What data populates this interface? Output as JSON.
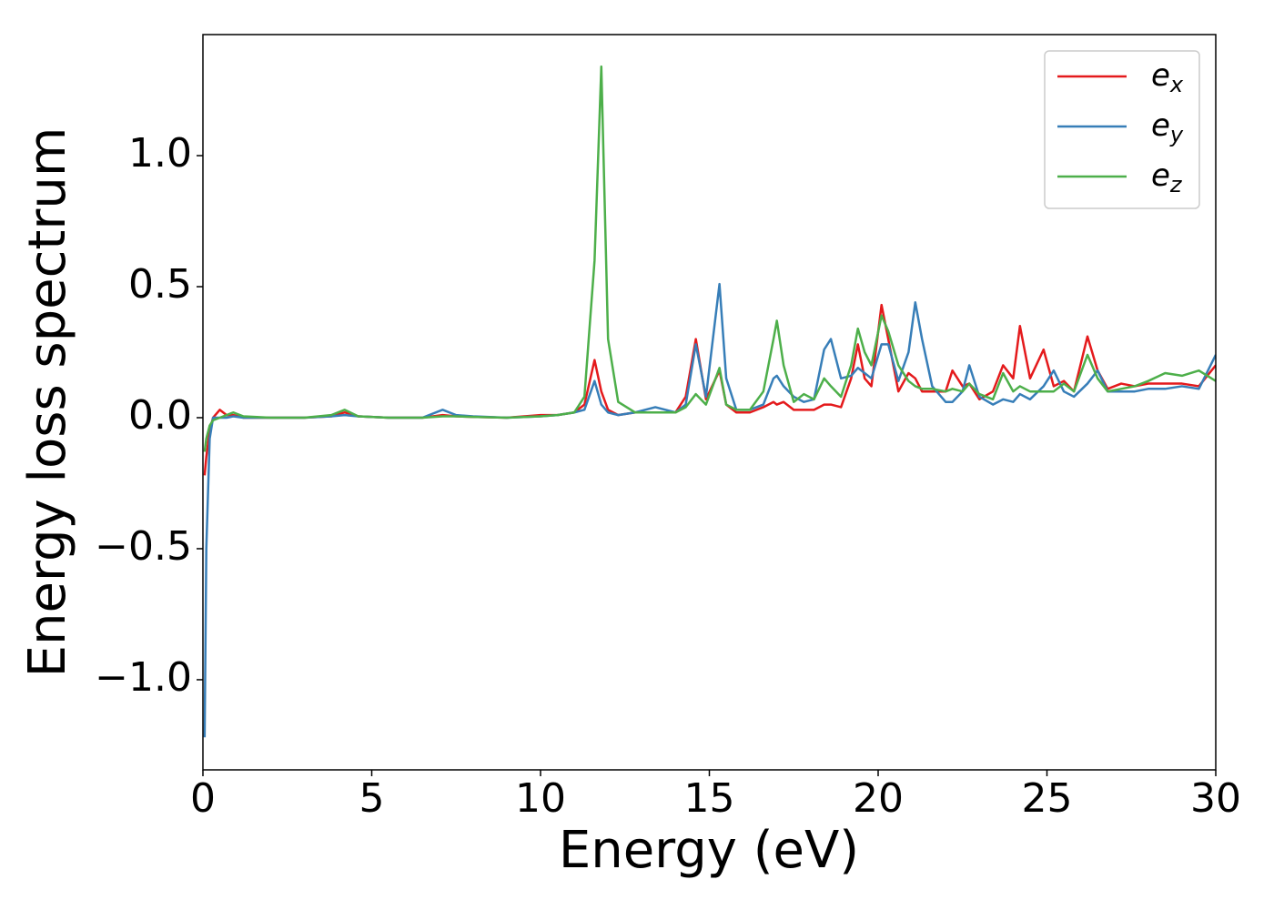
{
  "chart_data": {
    "type": "line",
    "xlabel": "Energy (eV)",
    "ylabel": "Energy loss spectrum",
    "x": [
      0.05,
      0.1,
      0.2,
      0.3,
      0.5,
      0.7,
      0.9,
      1.2,
      2,
      3,
      3.8,
      4.2,
      4.6,
      5.5,
      6.5,
      7.1,
      7.5,
      8,
      9,
      10,
      10.5,
      11,
      11.3,
      11.6,
      11.8,
      12,
      12.3,
      12.8,
      13.4,
      14,
      14.3,
      14.6,
      14.9,
      15.3,
      15.5,
      15.8,
      16.2,
      16.6,
      16.9,
      17.0,
      17.2,
      17.5,
      17.8,
      18.1,
      18.4,
      18.6,
      18.9,
      19.2,
      19.4,
      19.6,
      19.8,
      20.1,
      20.3,
      20.6,
      20.9,
      21.1,
      21.3,
      21.6,
      22.0,
      22.2,
      22.5,
      22.7,
      23.0,
      23.4,
      23.7,
      24.0,
      24.2,
      24.5,
      24.9,
      25.2,
      25.5,
      25.8,
      26.2,
      26.5,
      26.8,
      27.2,
      27.6,
      28.0,
      28.5,
      29.0,
      29.5,
      30
    ],
    "series": [
      {
        "name": "ex",
        "color": "#e41a1c",
        "values": [
          -0.22,
          -0.15,
          -0.05,
          0,
          0.03,
          0.01,
          0.01,
          0,
          0,
          0,
          0.005,
          0.02,
          0.005,
          0,
          0,
          0.01,
          0.005,
          0.003,
          0,
          0.01,
          0.01,
          0.02,
          0.05,
          0.22,
          0.1,
          0.03,
          0.01,
          0.02,
          0.02,
          0.02,
          0.08,
          0.3,
          0.07,
          0.18,
          0.05,
          0.02,
          0.02,
          0.04,
          0.06,
          0.05,
          0.06,
          0.03,
          0.03,
          0.03,
          0.05,
          0.05,
          0.04,
          0.15,
          0.28,
          0.15,
          0.12,
          0.43,
          0.3,
          0.1,
          0.17,
          0.15,
          0.1,
          0.1,
          0.1,
          0.18,
          0.12,
          0.13,
          0.07,
          0.1,
          0.2,
          0.15,
          0.35,
          0.15,
          0.26,
          0.12,
          0.14,
          0.1,
          0.31,
          0.18,
          0.11,
          0.13,
          0.12,
          0.13,
          0.13,
          0.13,
          0.12,
          0.2
        ]
      },
      {
        "name": "ey",
        "color": "#377eb8",
        "values": [
          -1.22,
          -0.5,
          -0.08,
          0,
          0,
          0,
          0.005,
          0,
          0,
          0,
          0.005,
          0.01,
          0.005,
          0,
          0,
          0.03,
          0.01,
          0.005,
          0,
          0.005,
          0.01,
          0.02,
          0.03,
          0.14,
          0.05,
          0.02,
          0.01,
          0.02,
          0.04,
          0.02,
          0.05,
          0.28,
          0.08,
          0.51,
          0.15,
          0.03,
          0.03,
          0.05,
          0.15,
          0.16,
          0.12,
          0.08,
          0.06,
          0.07,
          0.26,
          0.3,
          0.15,
          0.16,
          0.19,
          0.17,
          0.15,
          0.28,
          0.28,
          0.14,
          0.25,
          0.44,
          0.3,
          0.12,
          0.06,
          0.06,
          0.1,
          0.2,
          0.08,
          0.05,
          0.07,
          0.06,
          0.09,
          0.07,
          0.12,
          0.18,
          0.1,
          0.08,
          0.13,
          0.18,
          0.1,
          0.1,
          0.1,
          0.11,
          0.11,
          0.12,
          0.11,
          0.24
        ]
      },
      {
        "name": "ez",
        "color": "#4daf4a",
        "values": [
          -0.13,
          -0.08,
          -0.03,
          -0.01,
          0,
          0.01,
          0.02,
          0.005,
          0,
          0,
          0.01,
          0.03,
          0.005,
          0,
          0,
          0.005,
          0.005,
          0.003,
          0,
          0.005,
          0.01,
          0.02,
          0.08,
          0.6,
          1.34,
          0.3,
          0.06,
          0.02,
          0.02,
          0.02,
          0.04,
          0.09,
          0.05,
          0.19,
          0.05,
          0.03,
          0.03,
          0.1,
          0.3,
          0.37,
          0.2,
          0.06,
          0.09,
          0.07,
          0.15,
          0.12,
          0.08,
          0.2,
          0.34,
          0.25,
          0.2,
          0.39,
          0.33,
          0.2,
          0.14,
          0.12,
          0.11,
          0.11,
          0.1,
          0.11,
          0.1,
          0.13,
          0.09,
          0.07,
          0.17,
          0.1,
          0.12,
          0.1,
          0.1,
          0.1,
          0.13,
          0.1,
          0.24,
          0.15,
          0.1,
          0.11,
          0.12,
          0.14,
          0.17,
          0.16,
          0.18,
          0.14
        ]
      }
    ],
    "xlim": [
      0,
      30
    ],
    "xticks": [
      0,
      5,
      10,
      15,
      20,
      25,
      30
    ],
    "ylim": [
      -1.344,
      1.462
    ],
    "yticks": [
      {
        "value": -1.0,
        "label": "−1.0"
      },
      {
        "value": -0.5,
        "label": "−0.5"
      },
      {
        "value": 0.0,
        "label": "0.0"
      },
      {
        "value": 0.5,
        "label": "0.5"
      },
      {
        "value": 1.0,
        "label": "1.0"
      }
    ],
    "grid": false,
    "legend": "upper right"
  }
}
